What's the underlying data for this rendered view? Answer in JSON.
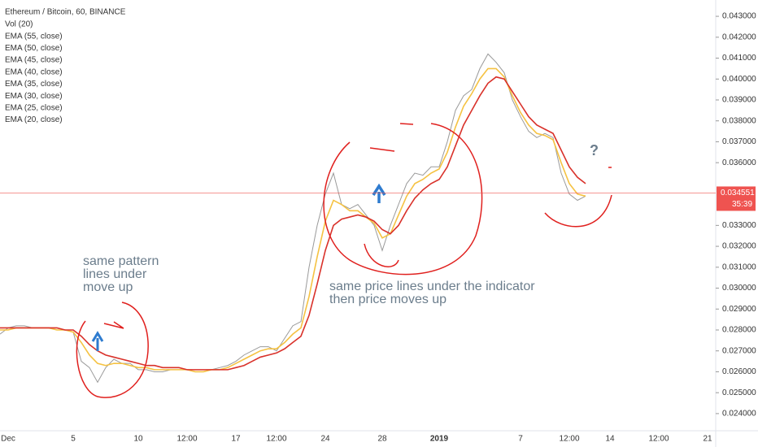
{
  "chart_data": {
    "type": "line",
    "title": "Ethereum / Bitcoin, 60, BINANCE",
    "indicators": [
      "Vol (20)",
      "EMA (55, close)",
      "EMA (50, close)",
      "EMA (45, close)",
      "EMA (40, close)",
      "EMA (35, close)",
      "EMA (30, close)",
      "EMA (25, close)",
      "EMA (20, close)"
    ],
    "categories": [
      null,
      "Dec",
      null,
      null,
      null,
      null,
      null,
      null,
      null,
      "5",
      null,
      null,
      null,
      null,
      null,
      null,
      null,
      "10",
      null,
      null,
      null,
      null,
      null,
      "12:00",
      null,
      null,
      null,
      null,
      null,
      "17",
      null,
      null,
      null,
      null,
      "12:00",
      null,
      null,
      null,
      null,
      null,
      "24",
      null,
      null,
      null,
      null,
      null,
      null,
      "28",
      null,
      null,
      null,
      null,
      null,
      null,
      "2019",
      null,
      null,
      null,
      null,
      null,
      null,
      null,
      null,
      null,
      "7",
      null,
      null,
      null,
      null,
      null,
      "12:00",
      null,
      null,
      null,
      null,
      "14",
      null,
      null,
      null,
      null,
      null,
      "12:00",
      null,
      null,
      null,
      null,
      null,
      "21"
    ],
    "series": [
      {
        "color": "#9a9a9a",
        "values": [
          0.0278,
          0.0281,
          0.0282,
          0.0282,
          0.0281,
          0.0281,
          0.0281,
          0.028,
          0.028,
          0.0279,
          0.0265,
          0.0262,
          0.0255,
          0.0262,
          0.0266,
          0.0264,
          0.0264,
          0.0261,
          0.0261,
          0.026,
          0.026,
          0.0261,
          0.0261,
          0.0261,
          0.026,
          0.026,
          0.0261,
          0.0262,
          0.0263,
          0.0265,
          0.0268,
          0.027,
          0.0272,
          0.0272,
          0.027,
          0.0276,
          0.0282,
          0.0284,
          0.031,
          0.033,
          0.0345,
          0.0355,
          0.034,
          0.0338,
          0.034,
          0.0335,
          0.033,
          0.0318,
          0.033,
          0.034,
          0.035,
          0.0355,
          0.0354,
          0.0358,
          0.0358,
          0.037,
          0.0385,
          0.0392,
          0.0395,
          0.0405,
          0.0412,
          0.0408,
          0.0403,
          0.039,
          0.0382,
          0.0375,
          0.0372,
          0.0374,
          0.0372,
          0.0355,
          0.0345,
          0.0342,
          0.0344,
          null,
          null,
          null,
          null,
          null,
          null,
          null,
          null,
          null,
          null,
          null,
          null,
          null,
          null,
          null
        ]
      },
      {
        "name": "EMA (20, close)",
        "color": "#f5c242",
        "values": [
          0.028,
          0.028,
          0.0281,
          0.0281,
          0.0281,
          0.0281,
          0.0281,
          0.028,
          0.028,
          0.0279,
          0.0274,
          0.0268,
          0.0264,
          0.0263,
          0.0264,
          0.0264,
          0.0263,
          0.0262,
          0.0262,
          0.0261,
          0.0261,
          0.0261,
          0.0261,
          0.0261,
          0.026,
          0.026,
          0.0261,
          0.0261,
          0.0262,
          0.0264,
          0.0266,
          0.0268,
          0.027,
          0.0271,
          0.0271,
          0.0274,
          0.0278,
          0.0281,
          0.0296,
          0.0315,
          0.0332,
          0.0342,
          0.034,
          0.0337,
          0.0337,
          0.0334,
          0.0331,
          0.0324,
          0.0326,
          0.0335,
          0.0344,
          0.035,
          0.0352,
          0.0355,
          0.0357,
          0.0365,
          0.0377,
          0.0387,
          0.0393,
          0.04,
          0.0405,
          0.0405,
          0.0401,
          0.0392,
          0.0384,
          0.0378,
          0.0374,
          0.0373,
          0.0371,
          0.036,
          0.035,
          0.0345,
          0.0344,
          null,
          null,
          null,
          null,
          null,
          null,
          null,
          null,
          null,
          null,
          null,
          null,
          null,
          null,
          null
        ]
      },
      {
        "name": "EMA (55, close)",
        "color": "#d9312a",
        "values": [
          0.0281,
          0.0281,
          0.0281,
          0.0281,
          0.0281,
          0.0281,
          0.0281,
          0.0281,
          0.028,
          0.028,
          0.0277,
          0.0273,
          0.027,
          0.0268,
          0.0267,
          0.0266,
          0.0265,
          0.0264,
          0.0263,
          0.0263,
          0.0262,
          0.0262,
          0.0262,
          0.0261,
          0.0261,
          0.0261,
          0.0261,
          0.0261,
          0.0261,
          0.0262,
          0.0263,
          0.0265,
          0.0267,
          0.0268,
          0.0269,
          0.0271,
          0.0274,
          0.0277,
          0.0287,
          0.0302,
          0.0318,
          0.033,
          0.0333,
          0.0334,
          0.0335,
          0.0334,
          0.0332,
          0.0328,
          0.0326,
          0.033,
          0.0337,
          0.0343,
          0.0347,
          0.035,
          0.0352,
          0.0358,
          0.0368,
          0.0378,
          0.0385,
          0.0392,
          0.0398,
          0.0401,
          0.04,
          0.0394,
          0.0388,
          0.0382,
          0.0378,
          0.0376,
          0.0374,
          0.0366,
          0.0358,
          0.0353,
          0.035,
          null,
          null,
          null,
          null,
          null,
          null,
          null,
          null,
          null,
          null,
          null,
          null,
          null,
          null,
          null
        ]
      }
    ],
    "ylim": [
      0.02318,
      0.04378
    ],
    "yticks": [
      {
        "value": 0.024,
        "label": "0.024000"
      },
      {
        "value": 0.025,
        "label": "0.025000"
      },
      {
        "value": 0.026,
        "label": "0.026000"
      },
      {
        "value": 0.027,
        "label": "0.027000"
      },
      {
        "value": 0.028,
        "label": "0.028000"
      },
      {
        "value": 0.029,
        "label": "0.029000"
      },
      {
        "value": 0.03,
        "label": "0.030000"
      },
      {
        "value": 0.031,
        "label": "0.031000"
      },
      {
        "value": 0.032,
        "label": "0.032000"
      },
      {
        "value": 0.033,
        "label": "0.033000"
      },
      {
        "value": 0.036,
        "label": "0.036000"
      },
      {
        "value": 0.037,
        "label": "0.037000"
      },
      {
        "value": 0.038,
        "label": "0.038000"
      },
      {
        "value": 0.039,
        "label": "0.039000"
      },
      {
        "value": 0.04,
        "label": "0.040000"
      },
      {
        "value": 0.041,
        "label": "0.041000"
      },
      {
        "value": 0.042,
        "label": "0.042000"
      },
      {
        "value": 0.043,
        "label": "0.043000"
      }
    ],
    "last_price": {
      "value": 0.034551,
      "label": "0.034551",
      "countdown": "35:39",
      "color": "#ef5350"
    },
    "annotations": [
      {
        "lines": [
          "same pattern",
          "lines under",
          "move up"
        ]
      },
      {
        "lines": [
          "same price lines under the indicator",
          "then price moves up"
        ]
      },
      {
        "text": "?"
      }
    ]
  }
}
